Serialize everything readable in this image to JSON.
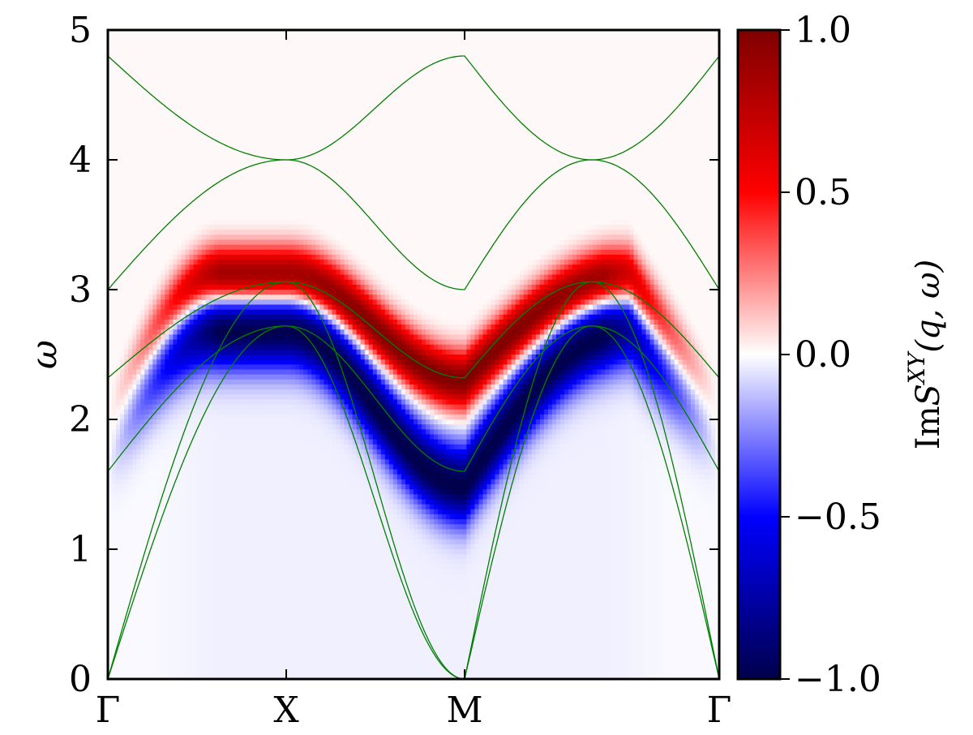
{
  "chart_data": {
    "type": "heatmap",
    "title": "",
    "xlabel": "",
    "ylabel": "ω",
    "x_ticks": [
      "Γ",
      "X",
      "M",
      "Γ"
    ],
    "ylim": [
      0,
      5
    ],
    "y_ticks": [
      "0",
      "1",
      "2",
      "3",
      "4",
      "5"
    ],
    "colorbar": {
      "label": "ImS^{XY}(q, ω)",
      "label_parts": {
        "prefix": "Im",
        "symbol": "S",
        "superscript": "XY",
        "args": "(q, ω)"
      },
      "range": [
        -1.0,
        1.0
      ],
      "ticks": [
        "1.0",
        "0.5",
        "0.0",
        "−0.5",
        "−1.0"
      ],
      "colormap": "seismic",
      "colors": {
        "low": "#00004c",
        "mid": "#ffffff",
        "high": "#7f0000"
      }
    },
    "band_color": "#008000",
    "bands_description": "spin-wave branches plotted along Γ–X–M–Γ",
    "bands": {
      "branch_a": {
        "Γ": 0.0,
        "X": 2.72,
        "M": 0.0,
        "Γ_end": 0.0
      },
      "branch_b": {
        "Γ": 0.0,
        "X": 3.06,
        "M": 0.0,
        "Γ_end": 0.0
      },
      "branch_c": {
        "Γ": 1.6,
        "X": 2.72,
        "M": 1.6,
        "Γ_end": 1.6
      },
      "branch_d": {
        "Γ": 2.32,
        "X": 3.06,
        "M": 2.32,
        "Γ_end": 2.32
      },
      "branch_e": {
        "Γ": 3.0,
        "X": 4.0,
        "M": 3.0,
        "Γ_end": 3.0
      },
      "branch_f": {
        "Γ": 4.8,
        "X": 4.0,
        "M": 4.8,
        "Γ_end": 4.8
      }
    },
    "intensity_features": {
      "positive_ridge": {
        "Γ": 2.0,
        "X": 3.1,
        "M": 2.3,
        "value": 1.0
      },
      "negative_ridge": {
        "Γ": 1.7,
        "X": 2.7,
        "M": 1.5,
        "value": -1.0
      },
      "negative_continuum_level": -0.03
    },
    "grid": false,
    "legend": "none"
  }
}
